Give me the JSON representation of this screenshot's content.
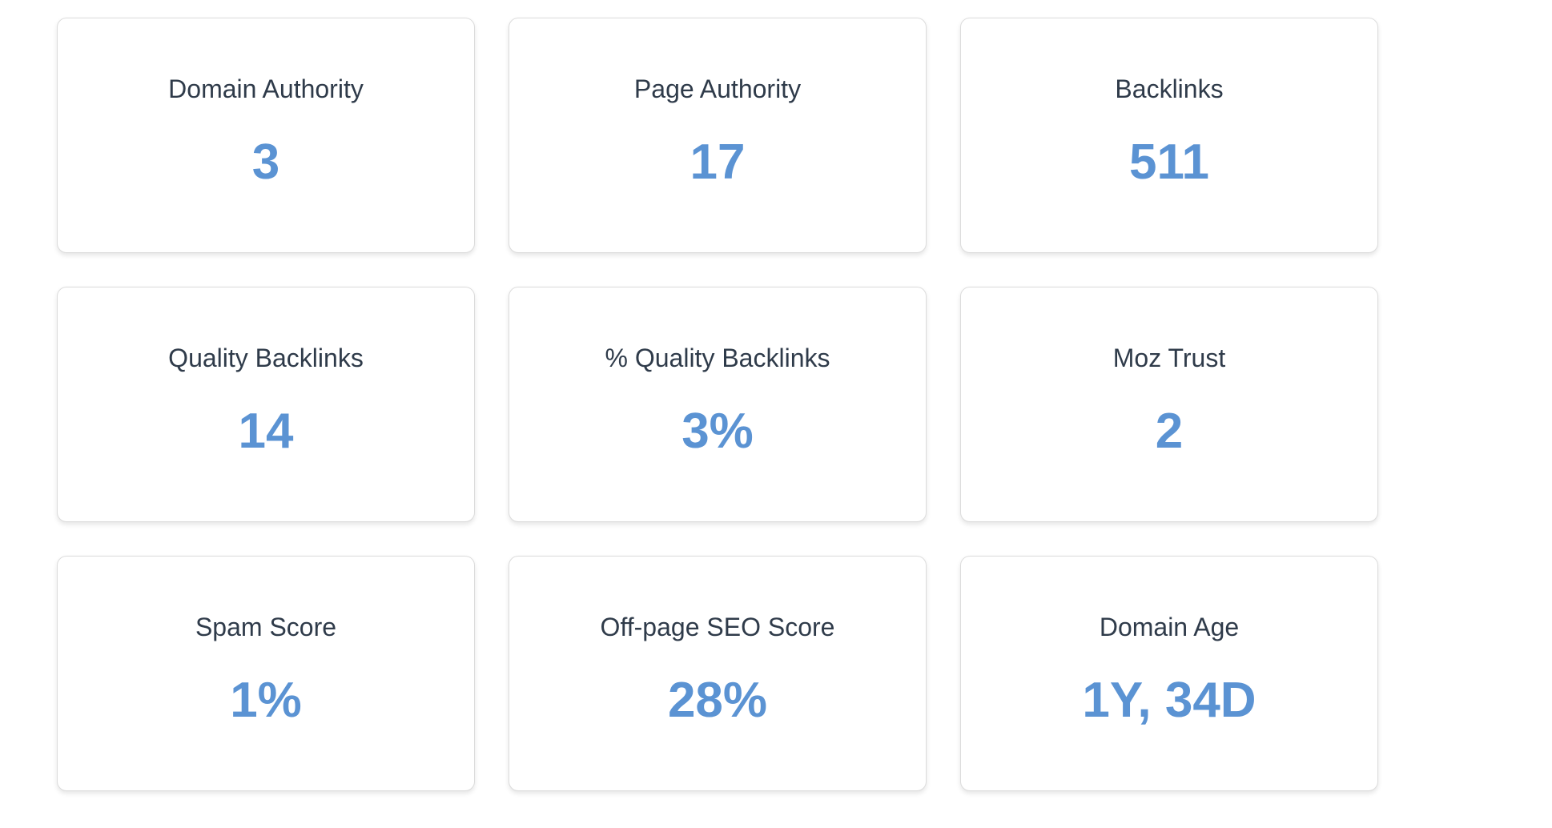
{
  "theme": {
    "value_color": "#5b93d3",
    "title_color": "#2f3b4a"
  },
  "metrics": [
    {
      "label": "Domain Authority",
      "value": "3"
    },
    {
      "label": "Page Authority",
      "value": "17"
    },
    {
      "label": "Backlinks",
      "value": "511"
    },
    {
      "label": "Quality Backlinks",
      "value": "14"
    },
    {
      "label": "% Quality Backlinks",
      "value": "3%"
    },
    {
      "label": "Moz Trust",
      "value": "2"
    },
    {
      "label": "Spam Score",
      "value": "1%"
    },
    {
      "label": "Off-page SEO Score",
      "value": "28%"
    },
    {
      "label": "Domain Age",
      "value": "1Y, 34D"
    }
  ]
}
